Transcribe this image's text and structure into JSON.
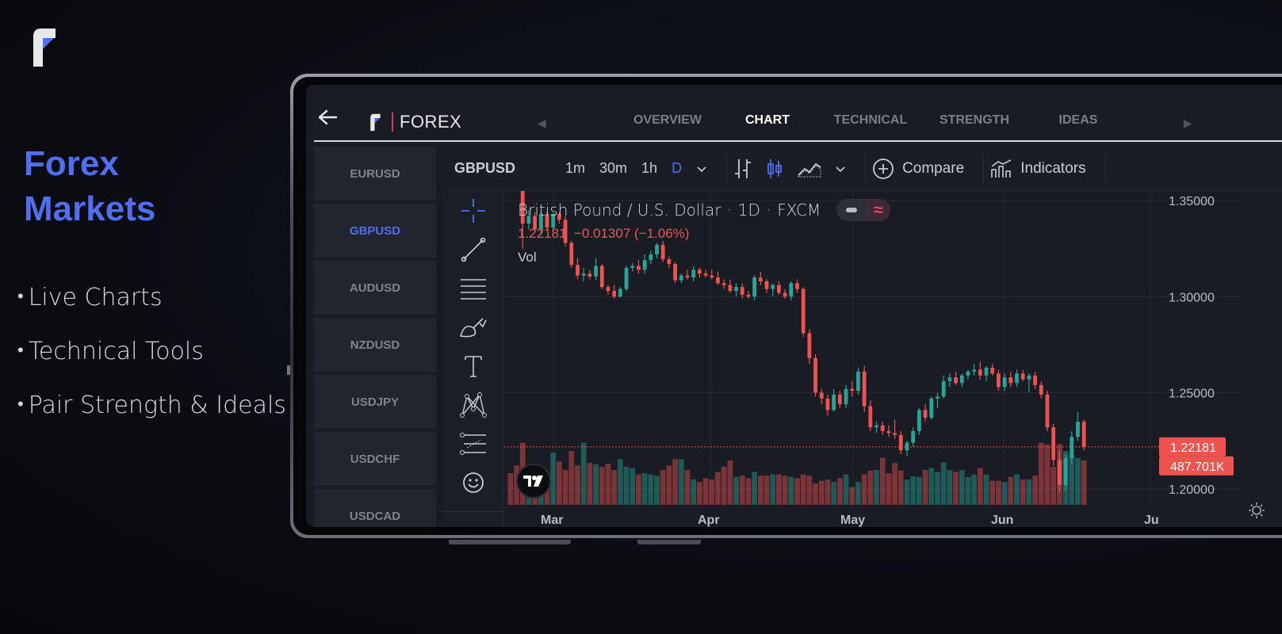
{
  "promo": {
    "title_line1": "Forex",
    "title_line2": "Markets",
    "features": [
      "Live Charts",
      "Technical Tools",
      "Pair Strength & Ideals"
    ]
  },
  "app": {
    "brand_name": "FOREX",
    "tabs": [
      "OVERVIEW",
      "CHART",
      "TECHNICAL",
      "STRENGTH",
      "IDEAS"
    ],
    "active_tab": "CHART",
    "pairs": [
      "EURUSD",
      "GBPUSD",
      "AUDUSD",
      "NZDUSD",
      "USDJPY",
      "USDCHF",
      "USDCAD"
    ],
    "active_pair": "GBPUSD"
  },
  "toolbar": {
    "symbol": "GBPUSD",
    "timeframes": [
      "1m",
      "30m",
      "1h",
      "D"
    ],
    "active_timeframe": "D",
    "compare_label": "Compare",
    "indicators_label": "Indicators"
  },
  "legend": {
    "name": "British Pound / U.S. Dollar",
    "interval": "1D",
    "source": "FXCM",
    "last_value": "1.22181",
    "change": "−0.01307 (−1.06%)",
    "vol_label": "Vol"
  },
  "colors": {
    "accent": "#4f6ef0",
    "up": "#26a69a",
    "down": "#ef5350",
    "background": "#1a1c23"
  },
  "icons": [
    "back-arrow-icon",
    "crosshair-icon",
    "trend-line-icon",
    "fib-icon",
    "brush-icon",
    "text-icon",
    "pattern-icon",
    "prediction-icon",
    "emoji-icon",
    "bar-style-icon",
    "candle-style-icon",
    "area-style-icon",
    "compare-icon",
    "indicators-icon",
    "tradingview-logo",
    "settings-icon"
  ],
  "chart_data": {
    "type": "candlestick",
    "symbol": "GBPUSD",
    "x_tick_labels": [
      "Mar",
      "Apr",
      "May",
      "Jun",
      "Ju"
    ],
    "y_tick_labels": [
      "1.35000",
      "1.30000",
      "1.25000",
      "1.20000"
    ],
    "ylim": [
      1.19,
      1.355
    ],
    "last_price_label": "1.22181",
    "last_volume_label": "487.701K",
    "grid": true,
    "candles": [
      [
        1.3662,
        1.367,
        1.361,
        1.3625
      ],
      [
        1.3625,
        1.365,
        1.356,
        1.358
      ],
      [
        1.358,
        1.36,
        1.325,
        1.338
      ],
      [
        1.338,
        1.345,
        1.335,
        1.342
      ],
      [
        1.342,
        1.344,
        1.334,
        1.335
      ],
      [
        1.335,
        1.344,
        1.332,
        1.343
      ],
      [
        1.343,
        1.3445,
        1.335,
        1.336
      ],
      [
        1.336,
        1.344,
        1.334,
        1.343
      ],
      [
        1.343,
        1.344,
        1.338,
        1.34
      ],
      [
        1.34,
        1.342,
        1.326,
        1.328
      ],
      [
        1.328,
        1.329,
        1.315,
        1.3165
      ],
      [
        1.3165,
        1.32,
        1.309,
        1.311
      ],
      [
        1.311,
        1.315,
        1.308,
        1.312
      ],
      [
        1.312,
        1.314,
        1.309,
        1.3105
      ],
      [
        1.3105,
        1.32,
        1.3085,
        1.316
      ],
      [
        1.316,
        1.317,
        1.304,
        1.305
      ],
      [
        1.305,
        1.306,
        1.301,
        1.303
      ],
      [
        1.303,
        1.306,
        1.299,
        1.3
      ],
      [
        1.3,
        1.305,
        1.2995,
        1.304
      ],
      [
        1.304,
        1.316,
        1.303,
        1.315
      ],
      [
        1.315,
        1.3175,
        1.313,
        1.316
      ],
      [
        1.316,
        1.319,
        1.312,
        1.314
      ],
      [
        1.314,
        1.322,
        1.312,
        1.319
      ],
      [
        1.319,
        1.324,
        1.317,
        1.322
      ],
      [
        1.322,
        1.328,
        1.32,
        1.327
      ],
      [
        1.327,
        1.329,
        1.318,
        1.3195
      ],
      [
        1.3195,
        1.321,
        1.315,
        1.317
      ],
      [
        1.317,
        1.318,
        1.307,
        1.3085
      ],
      [
        1.3085,
        1.312,
        1.307,
        1.311
      ],
      [
        1.311,
        1.314,
        1.309,
        1.31
      ],
      [
        1.31,
        1.316,
        1.308,
        1.314
      ],
      [
        1.314,
        1.315,
        1.31,
        1.312
      ],
      [
        1.312,
        1.314,
        1.31,
        1.311
      ],
      [
        1.311,
        1.314,
        1.309,
        1.31
      ],
      [
        1.31,
        1.313,
        1.306,
        1.307
      ],
      [
        1.307,
        1.309,
        1.304,
        1.306
      ],
      [
        1.306,
        1.309,
        1.302,
        1.303
      ],
      [
        1.303,
        1.307,
        1.3,
        1.305
      ],
      [
        1.305,
        1.307,
        1.299,
        1.301
      ],
      [
        1.301,
        1.303,
        1.299,
        1.3
      ],
      [
        1.3,
        1.311,
        1.298,
        1.31
      ],
      [
        1.31,
        1.313,
        1.306,
        1.308
      ],
      [
        1.308,
        1.309,
        1.302,
        1.304
      ],
      [
        1.304,
        1.307,
        1.3,
        1.306
      ],
      [
        1.306,
        1.308,
        1.301,
        1.302
      ],
      [
        1.302,
        1.304,
        1.299,
        1.3
      ],
      [
        1.3,
        1.308,
        1.298,
        1.307
      ],
      [
        1.307,
        1.309,
        1.302,
        1.304
      ],
      [
        1.304,
        1.305,
        1.279,
        1.281
      ],
      [
        1.281,
        1.283,
        1.265,
        1.268
      ],
      [
        1.268,
        1.27,
        1.248,
        1.25
      ],
      [
        1.25,
        1.252,
        1.244,
        1.247
      ],
      [
        1.247,
        1.249,
        1.238,
        1.241
      ],
      [
        1.241,
        1.252,
        1.24,
        1.249
      ],
      [
        1.249,
        1.251,
        1.242,
        1.244
      ],
      [
        1.244,
        1.254,
        1.242,
        1.252
      ],
      [
        1.252,
        1.256,
        1.248,
        1.251
      ],
      [
        1.251,
        1.263,
        1.249,
        1.261
      ],
      [
        1.261,
        1.264,
        1.24,
        1.243
      ],
      [
        1.243,
        1.246,
        1.23,
        1.232
      ],
      [
        1.232,
        1.235,
        1.229,
        1.233
      ],
      [
        1.233,
        1.235,
        1.228,
        1.23
      ],
      [
        1.23,
        1.233,
        1.227,
        1.229
      ],
      [
        1.229,
        1.236,
        1.226,
        1.228
      ],
      [
        1.228,
        1.23,
        1.218,
        1.22
      ],
      [
        1.22,
        1.225,
        1.217,
        1.224
      ],
      [
        1.224,
        1.232,
        1.222,
        1.23
      ],
      [
        1.23,
        1.242,
        1.228,
        1.241
      ],
      [
        1.241,
        1.244,
        1.235,
        1.237
      ],
      [
        1.237,
        1.248,
        1.236,
        1.247
      ],
      [
        1.247,
        1.25,
        1.242,
        1.248
      ],
      [
        1.248,
        1.259,
        1.247,
        1.256
      ],
      [
        1.256,
        1.26,
        1.253,
        1.258
      ],
      [
        1.258,
        1.261,
        1.254,
        1.255
      ],
      [
        1.255,
        1.26,
        1.253,
        1.259
      ],
      [
        1.259,
        1.262,
        1.257,
        1.261
      ],
      [
        1.261,
        1.265,
        1.259,
        1.262
      ],
      [
        1.262,
        1.266,
        1.257,
        1.259
      ],
      [
        1.259,
        1.264,
        1.256,
        1.263
      ],
      [
        1.263,
        1.265,
        1.259,
        1.26
      ],
      [
        1.26,
        1.262,
        1.251,
        1.253
      ],
      [
        1.253,
        1.26,
        1.251,
        1.258
      ],
      [
        1.258,
        1.261,
        1.253,
        1.255
      ],
      [
        1.255,
        1.262,
        1.253,
        1.26
      ],
      [
        1.26,
        1.262,
        1.256,
        1.257
      ],
      [
        1.257,
        1.26,
        1.25,
        1.259
      ],
      [
        1.259,
        1.261,
        1.252,
        1.254
      ],
      [
        1.254,
        1.256,
        1.247,
        1.249
      ],
      [
        1.249,
        1.251,
        1.23,
        1.232
      ],
      [
        1.232,
        1.234,
        1.212,
        1.215
      ],
      [
        1.215,
        1.22,
        1.198,
        1.202
      ],
      [
        1.202,
        1.218,
        1.199,
        1.216
      ],
      [
        1.216,
        1.23,
        1.213,
        1.227
      ],
      [
        1.227,
        1.24,
        1.225,
        1.2349
      ],
      [
        1.2349,
        1.236,
        1.22,
        1.2218
      ]
    ],
    "volume_relative": [
      0.5,
      0.62,
      0.98,
      0.45,
      0.55,
      0.4,
      0.4,
      0.82,
      0.68,
      0.55,
      0.85,
      0.62,
      0.98,
      0.66,
      0.64,
      0.6,
      0.65,
      0.55,
      0.72,
      0.6,
      0.58,
      0.48,
      0.5,
      0.48,
      0.46,
      0.55,
      0.62,
      0.72,
      0.72,
      0.55,
      0.4,
      0.36,
      0.42,
      0.4,
      0.52,
      0.6,
      0.7,
      0.44,
      0.46,
      0.42,
      0.52,
      0.46,
      0.46,
      0.48,
      0.48,
      0.46,
      0.44,
      0.42,
      0.48,
      0.46,
      0.34,
      0.38,
      0.4,
      0.36,
      0.42,
      0.48,
      0.28,
      0.36,
      0.48,
      0.54,
      0.55,
      0.74,
      0.5,
      0.66,
      0.54,
      0.4,
      0.45,
      0.44,
      0.55,
      0.58,
      0.52,
      0.67,
      0.55,
      0.52,
      0.55,
      0.44,
      0.48,
      0.58,
      0.48,
      0.38,
      0.38,
      0.36,
      0.44,
      0.48,
      0.4,
      0.4,
      0.46,
      0.98,
      0.95,
      0.6,
      0.96,
      0.85,
      0.8,
      0.74,
      0.7
    ]
  }
}
